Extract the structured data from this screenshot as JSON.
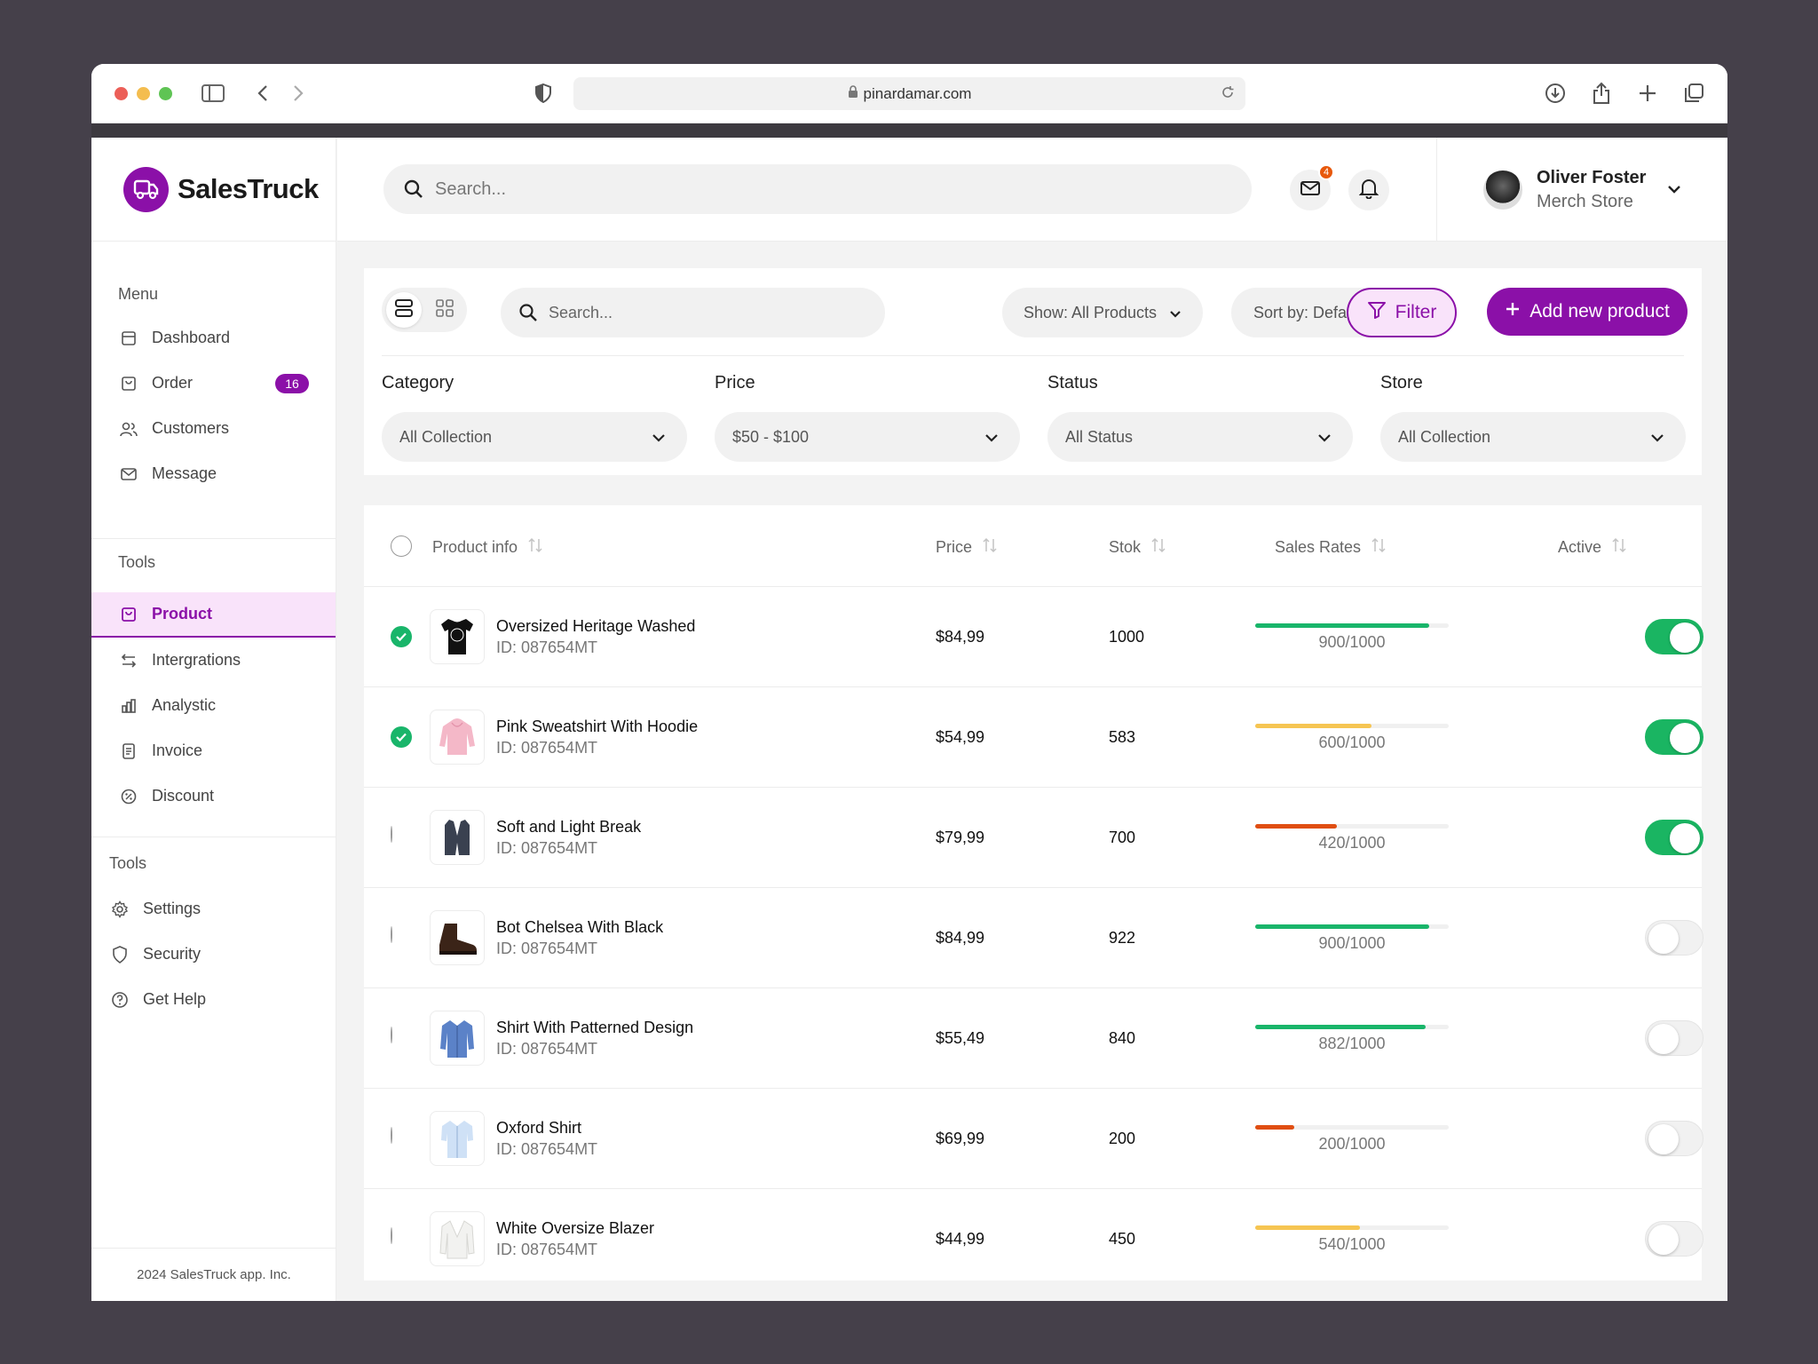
{
  "browser": {
    "url": "pinardamar.com"
  },
  "app": {
    "name": "SalesTruck",
    "footer": "2024 SalesTruck app. Inc."
  },
  "topbar": {
    "search_placeholder": "Search...",
    "mail_badge": "4",
    "user": {
      "name": "Oliver Foster",
      "role": "Merch Store"
    }
  },
  "sidebar": {
    "menu_heading": "Menu",
    "menu": [
      {
        "label": "Dashboard",
        "icon": "dashboard-icon"
      },
      {
        "label": "Order",
        "icon": "order-icon",
        "badge": "16"
      },
      {
        "label": "Customers",
        "icon": "users-icon"
      },
      {
        "label": "Message",
        "icon": "mail-icon"
      }
    ],
    "tools_heading": "Tools",
    "tools": [
      {
        "label": "Product",
        "icon": "bag-icon",
        "active": true
      },
      {
        "label": "Intergrations",
        "icon": "arrows-icon"
      },
      {
        "label": "Analystic",
        "icon": "chart-icon"
      },
      {
        "label": "Invoice",
        "icon": "invoice-icon"
      },
      {
        "label": "Discount",
        "icon": "discount-icon"
      }
    ],
    "tools2_heading": "Tools",
    "tools2": [
      {
        "label": "Settings",
        "icon": "gear-icon"
      },
      {
        "label": "Security",
        "icon": "shield-icon"
      },
      {
        "label": "Get Help",
        "icon": "help-icon"
      }
    ]
  },
  "toolbar": {
    "search_placeholder": "Search...",
    "show": "Show: All Products",
    "sort": "Sort by: Default",
    "filter": "Filter",
    "add": "Add new product"
  },
  "filters": [
    {
      "label": "Category",
      "value": "All Collection"
    },
    {
      "label": "Price",
      "value": "$50 - $100"
    },
    {
      "label": "Status",
      "value": "All Status"
    },
    {
      "label": "Store",
      "value": "All Collection"
    }
  ],
  "table": {
    "columns": [
      "Product info",
      "Price",
      "Stok",
      "Sales Rates",
      "Active"
    ],
    "rows": [
      {
        "name": "Oversized Heritage Washed",
        "id": "ID: 087654MT",
        "price": "$84,99",
        "stock": "1000",
        "rate": "900/1000",
        "rate_fraction": 0.9,
        "rate_color": "#19b56a",
        "active": true,
        "selected": true,
        "thumb": "tshirt"
      },
      {
        "name": "Pink Sweatshirt With Hoodie",
        "id": "ID: 087654MT",
        "price": "$54,99",
        "stock": "583",
        "rate": "600/1000",
        "rate_fraction": 0.6,
        "rate_color": "#f6c552",
        "active": true,
        "selected": true,
        "thumb": "hoodie"
      },
      {
        "name": "Soft and Light Break",
        "id": "ID: 087654MT",
        "price": "$79,99",
        "stock": "700",
        "rate": "420/1000",
        "rate_fraction": 0.42,
        "rate_color": "#e04e12",
        "active": true,
        "selected": false,
        "thumb": "vest"
      },
      {
        "name": "Bot Chelsea With Black",
        "id": "ID: 087654MT",
        "price": "$84,99",
        "stock": "922",
        "rate": "900/1000",
        "rate_fraction": 0.9,
        "rate_color": "#19b56a",
        "active": false,
        "selected": false,
        "thumb": "boot"
      },
      {
        "name": "Shirt With Patterned Design",
        "id": "ID: 087654MT",
        "price": "$55,49",
        "stock": "840",
        "rate": "882/1000",
        "rate_fraction": 0.882,
        "rate_color": "#19b56a",
        "active": false,
        "selected": false,
        "thumb": "shirt-blue"
      },
      {
        "name": "Oxford Shirt",
        "id": "ID: 087654MT",
        "price": "$69,99",
        "stock": "200",
        "rate": "200/1000",
        "rate_fraction": 0.2,
        "rate_color": "#e04e12",
        "active": false,
        "selected": false,
        "thumb": "shirt-light"
      },
      {
        "name": "White Oversize Blazer",
        "id": "ID: 087654MT",
        "price": "$44,99",
        "stock": "450",
        "rate": "540/1000",
        "rate_fraction": 0.54,
        "rate_color": "#f6c552",
        "active": false,
        "selected": false,
        "thumb": "blazer"
      }
    ]
  },
  "colors": {
    "brand": "#8b10a8",
    "brand_light": "#f9e3fa",
    "success": "#19b56a",
    "warning": "#f6c552",
    "danger": "#e04e12"
  }
}
